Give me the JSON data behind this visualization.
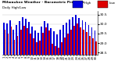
{
  "title": "Milwaukee Weather - Barometric Pressure",
  "subtitle": "Daily High/Low",
  "high_values": [
    30.08,
    30.05,
    30.22,
    29.72,
    29.95,
    30.18,
    30.35,
    30.28,
    30.12,
    29.88,
    29.65,
    29.52,
    29.85,
    30.18,
    30.05,
    29.78,
    29.62,
    29.45,
    29.72,
    29.95,
    30.08,
    30.25,
    30.38,
    30.48,
    30.32,
    30.22,
    30.12,
    29.95,
    29.82,
    29.68
  ],
  "low_values": [
    29.72,
    29.48,
    29.85,
    29.18,
    29.38,
    29.72,
    29.92,
    29.78,
    29.48,
    29.25,
    29.05,
    29.12,
    29.55,
    29.82,
    29.68,
    28.95,
    28.85,
    28.75,
    29.05,
    29.28,
    29.48,
    29.72,
    29.92,
    30.02,
    29.82,
    29.72,
    29.58,
    29.38,
    29.25,
    29.08
  ],
  "labels": [
    "1",
    "2",
    "3",
    "4",
    "5",
    "6",
    "7",
    "8",
    "9",
    "10",
    "11",
    "12",
    "13",
    "14",
    "15",
    "16",
    "17",
    "18",
    "19",
    "20",
    "21",
    "22",
    "23",
    "24",
    "25",
    "26",
    "27",
    "28",
    "29",
    "30"
  ],
  "high_color": "#0000dd",
  "low_color": "#dd0000",
  "bg_color": "#ffffff",
  "plot_bg": "#ffffff",
  "ylim_min": 28.4,
  "ylim_max": 30.7,
  "yticks": [
    28.5,
    29.0,
    29.5,
    30.0,
    30.5
  ],
  "legend_high_label": "High",
  "legend_low_label": "Low",
  "legend_high_color": "#0000dd",
  "legend_low_color": "#dd0000"
}
